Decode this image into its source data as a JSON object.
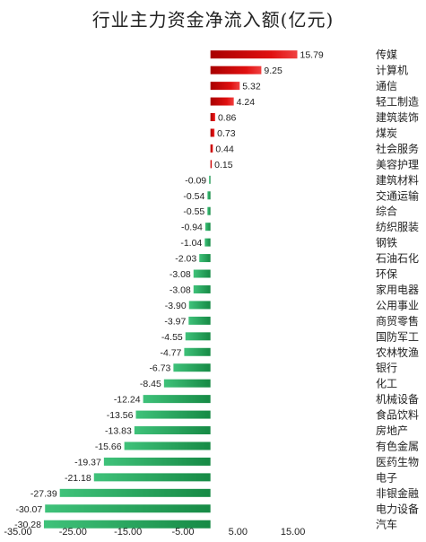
{
  "chart_data": {
    "type": "bar",
    "orientation": "horizontal",
    "title": "行业主力资金净流入额(亿元)",
    "xlabel": "",
    "ylabel": "",
    "xlim": [
      -35,
      25
    ],
    "xticks": [
      -35.0,
      -25.0,
      -15.0,
      -5.0,
      5.0,
      15.0
    ],
    "xtick_labels": [
      "-35.00",
      "-25.00",
      "-15.00",
      "-5.00",
      "5.00",
      "15.00"
    ],
    "grid": false,
    "legend": "none",
    "colors": {
      "positive": "#d40000",
      "negative": "#1f9c54"
    },
    "categories": [
      "传媒",
      "计算机",
      "通信",
      "轻工制造",
      "建筑装饰",
      "煤炭",
      "社会服务",
      "美容护理",
      "建筑材料",
      "交通运输",
      "综合",
      "纺织服装",
      "钢铁",
      "石油石化",
      "环保",
      "家用电器",
      "公用事业",
      "商贸零售",
      "国防军工",
      "农林牧渔",
      "银行",
      "化工",
      "机械设备",
      "食品饮料",
      "房地产",
      "有色金属",
      "医药生物",
      "电子",
      "非银金融",
      "电力设备",
      "汽车"
    ],
    "values": [
      15.79,
      9.25,
      5.32,
      4.24,
      0.86,
      0.73,
      0.44,
      0.15,
      -0.09,
      -0.54,
      -0.55,
      -0.94,
      -1.04,
      -2.03,
      -3.08,
      -3.08,
      -3.9,
      -3.97,
      -4.55,
      -4.77,
      -6.73,
      -8.45,
      -12.24,
      -13.56,
      -13.83,
      -15.66,
      -19.37,
      -21.18,
      -27.39,
      -30.07,
      -30.28
    ],
    "value_labels": [
      "15.79",
      "9.25",
      "5.32",
      "4.24",
      "0.86",
      "0.73",
      "0.44",
      "0.15",
      "-0.09",
      "-0.54",
      "-0.55",
      "-0.94",
      "-1.04",
      "-2.03",
      "-3.08",
      "-3.08",
      "-3.90",
      "-3.97",
      "-4.55",
      "-4.77",
      "-6.73",
      "-8.45",
      "-12.24",
      "-13.56",
      "-13.83",
      "-15.66",
      "-19.37",
      "-21.18",
      "-27.39",
      "-30.07",
      "-30.28"
    ]
  }
}
